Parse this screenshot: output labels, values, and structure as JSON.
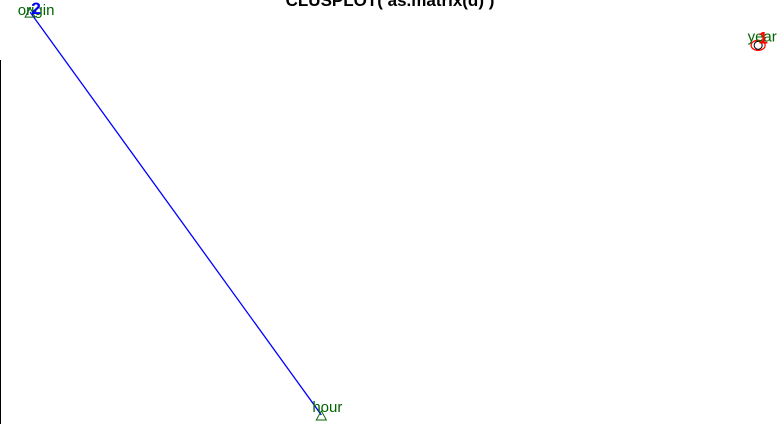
{
  "chart_data": {
    "type": "scatter",
    "title": "CLUSPLOT( as.matrix(d) )",
    "xlabel": "",
    "ylabel": "",
    "grid": false,
    "colors": {
      "frame": "#000000",
      "cluster_line": "#0000ff",
      "point_label": "#006400",
      "point_marker": "#006400",
      "cluster_ellipse": "#ff0000",
      "cluster_1_label": "#ff0000",
      "cluster_2_label": "#0000ff",
      "year_marker": "#000000"
    },
    "points": [
      {
        "label": "origin",
        "x": 0.0,
        "y": 1.0,
        "marker": "triangle",
        "cluster": "2"
      },
      {
        "label": "hour",
        "x": 0.4,
        "y": 0.0,
        "marker": "triangle",
        "cluster": "2"
      },
      {
        "label": "year",
        "x": 1.0,
        "y": 0.92,
        "marker": "circle",
        "cluster": "1"
      }
    ],
    "clusters": [
      {
        "name": "1",
        "members": [
          "year"
        ]
      },
      {
        "name": "2",
        "members": [
          "origin",
          "hour"
        ]
      }
    ],
    "xlim": [
      -0.04,
      1.03
    ],
    "ylim": [
      -0.02,
      1.03
    ]
  }
}
